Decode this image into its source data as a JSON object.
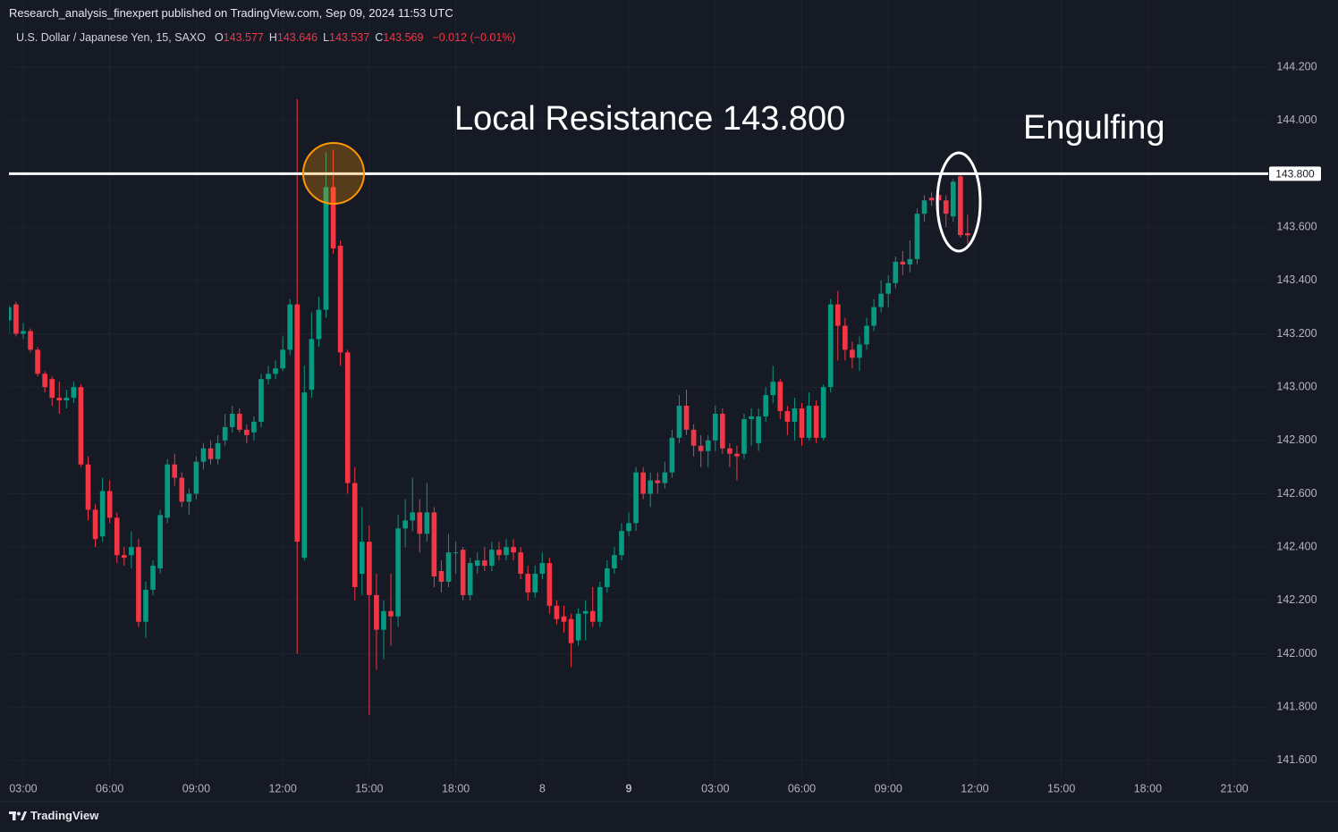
{
  "header": {
    "text": "Research_analysis_finexpert published on TradingView.com, Sep 09, 2024 11:53 UTC"
  },
  "footer": {
    "text": "TradingView"
  },
  "chart_data": {
    "type": "candlestick",
    "title": "U.S. Dollar / Japanese Yen, 15, SAXO",
    "ohlc_legend": [
      {
        "label": "O",
        "value": "143.577"
      },
      {
        "label": "H",
        "value": "143.646"
      },
      {
        "label": "L",
        "value": "143.537"
      },
      {
        "label": "C",
        "value": "143.569"
      }
    ],
    "change": "−0.012 (−0.01%)",
    "annotations": [
      {
        "text": "Local Resistance 143.800"
      },
      {
        "text": "Engulfing"
      }
    ],
    "hline": {
      "value": 143.8,
      "label": "143.800",
      "color": "#ffffff"
    },
    "up_color": "#089981",
    "down_color": "#f23645",
    "grid": true,
    "xlim": [
      -1.98,
      172.7
    ],
    "ylim": [
      141.536,
      144.351
    ],
    "xticks": [
      {
        "value": 0,
        "label": "03:00"
      },
      {
        "value": 12,
        "label": "06:00"
      },
      {
        "value": 24,
        "label": "09:00"
      },
      {
        "value": 36,
        "label": "12:00"
      },
      {
        "value": 48,
        "label": "15:00"
      },
      {
        "value": 60,
        "label": "18:00"
      },
      {
        "value": 72,
        "label": "8"
      },
      {
        "value": 84,
        "label": "9"
      },
      {
        "value": 96,
        "label": "03:00"
      },
      {
        "value": 108,
        "label": "06:00"
      },
      {
        "value": 120,
        "label": "09:00"
      },
      {
        "value": 132,
        "label": "12:00"
      },
      {
        "value": 144,
        "label": "15:00"
      },
      {
        "value": 156,
        "label": "18:00"
      },
      {
        "value": 168,
        "label": "21:00"
      }
    ],
    "yticks": [
      {
        "value": 141.6,
        "label": "141.600"
      },
      {
        "value": 141.8,
        "label": "141.800"
      },
      {
        "value": 142.0,
        "label": "142.000"
      },
      {
        "value": 142.2,
        "label": "142.200"
      },
      {
        "value": 142.4,
        "label": "142.400"
      },
      {
        "value": 142.6,
        "label": "142.600"
      },
      {
        "value": 142.8,
        "label": "142.800"
      },
      {
        "value": 143.0,
        "label": "143.000"
      },
      {
        "value": 143.2,
        "label": "143.200"
      },
      {
        "value": 143.4,
        "label": "143.400"
      },
      {
        "value": 143.6,
        "label": "143.600"
      },
      {
        "value": 143.8,
        "label": "143.800"
      },
      {
        "value": 144.0,
        "label": "144.000"
      },
      {
        "value": 144.2,
        "label": "144.200"
      }
    ],
    "x": [
      -2,
      -1,
      0,
      1,
      2,
      3,
      4,
      5,
      6,
      7,
      8,
      9,
      10,
      11,
      12,
      13,
      14,
      15,
      16,
      17,
      18,
      19,
      20,
      21,
      22,
      23,
      24,
      25,
      26,
      27,
      28,
      29,
      30,
      31,
      32,
      33,
      34,
      35,
      36,
      37,
      38,
      39,
      40,
      41,
      42,
      43,
      44,
      45,
      46,
      47,
      48,
      49,
      50,
      51,
      52,
      53,
      54,
      55,
      56,
      57,
      58,
      59,
      60,
      61,
      62,
      63,
      64,
      65,
      66,
      67,
      68,
      69,
      70,
      71,
      72,
      73,
      74,
      75,
      76,
      77,
      78,
      79,
      80,
      81,
      82,
      83,
      84,
      85,
      86,
      87,
      88,
      89,
      90,
      91,
      92,
      93,
      94,
      95,
      96,
      97,
      98,
      99,
      100,
      101,
      102,
      103,
      104,
      105,
      106,
      107,
      108,
      109,
      110,
      111,
      112,
      113,
      114,
      115,
      116,
      117,
      118,
      119,
      120,
      121,
      122,
      123,
      124,
      125,
      126,
      127,
      128,
      129,
      130,
      131
    ],
    "open": [
      143.25,
      143.31,
      143.2,
      143.21,
      143.14,
      143.05,
      143.03,
      142.96,
      142.95,
      142.96,
      143.0,
      142.71,
      142.54,
      142.44,
      142.61,
      142.51,
      142.37,
      142.37,
      142.4,
      142.12,
      142.24,
      142.32,
      142.51,
      142.71,
      142.66,
      142.57,
      142.6,
      142.72,
      142.77,
      142.73,
      142.8,
      142.85,
      142.9,
      142.84,
      142.83,
      142.87,
      143.03,
      143.05,
      143.07,
      143.14,
      143.31,
      142.36,
      142.99,
      143.18,
      143.29,
      143.75,
      143.53,
      143.13,
      142.64,
      142.3,
      142.42,
      142.22,
      142.09,
      142.16,
      142.14,
      142.47,
      142.5,
      142.53,
      142.45,
      142.53,
      142.31,
      142.27,
      142.38,
      142.39,
      142.22,
      142.33,
      142.35,
      142.33,
      142.39,
      142.37,
      142.4,
      142.38,
      142.3,
      142.23,
      142.3,
      142.34,
      142.18,
      142.14,
      142.13,
      142.05,
      142.15,
      142.16,
      142.12,
      142.25,
      142.32,
      142.37,
      142.46,
      142.49,
      142.68,
      142.6,
      142.65,
      142.64,
      142.68,
      142.81,
      142.93,
      142.84,
      142.78,
      142.76,
      142.8,
      142.9,
      142.77,
      142.75,
      142.75,
      142.88,
      142.79,
      142.89,
      142.97,
      143.02,
      142.91,
      142.87,
      142.92,
      142.81,
      142.93,
      142.81,
      143.0,
      143.31,
      143.23,
      143.14,
      143.11,
      143.16,
      143.23,
      143.3,
      143.35,
      143.39,
      143.47,
      143.46,
      143.48,
      143.65,
      143.71,
      143.72,
      143.7,
      143.64,
      143.79,
      143.577
    ],
    "high": [
      143.31,
      143.32,
      143.24,
      143.22,
      143.15,
      143.06,
      143.04,
      143.02,
      142.99,
      143.02,
      143.01,
      142.74,
      142.56,
      142.66,
      142.65,
      142.53,
      142.4,
      142.46,
      142.43,
      142.27,
      142.35,
      142.54,
      142.73,
      142.75,
      142.68,
      142.62,
      142.74,
      142.79,
      142.8,
      142.82,
      142.9,
      142.93,
      142.92,
      142.86,
      142.89,
      143.05,
      143.08,
      143.1,
      143.19,
      143.33,
      144.08,
      143.08,
      143.28,
      143.34,
      143.88,
      143.89,
      143.55,
      143.14,
      142.7,
      142.55,
      142.48,
      142.3,
      142.2,
      142.3,
      142.52,
      142.58,
      142.66,
      142.58,
      142.64,
      142.55,
      142.35,
      142.45,
      142.42,
      142.4,
      142.36,
      142.38,
      142.4,
      142.42,
      142.42,
      142.43,
      142.43,
      142.4,
      142.33,
      142.33,
      142.38,
      142.36,
      142.2,
      142.18,
      142.15,
      142.17,
      142.2,
      142.25,
      142.27,
      142.35,
      142.4,
      142.49,
      142.53,
      142.7,
      142.7,
      142.68,
      142.68,
      142.72,
      142.84,
      142.97,
      142.99,
      142.86,
      142.82,
      142.82,
      142.93,
      142.92,
      142.79,
      142.78,
      142.9,
      142.92,
      142.92,
      143.0,
      143.08,
      143.03,
      142.93,
      142.96,
      142.94,
      142.98,
      142.95,
      143.01,
      143.33,
      143.36,
      143.26,
      143.17,
      143.19,
      143.26,
      143.33,
      143.4,
      143.42,
      143.49,
      143.51,
      143.55,
      143.67,
      143.72,
      143.73,
      143.77,
      143.72,
      143.78,
      143.8,
      143.646
    ],
    "low": [
      143.2,
      143.19,
      143.18,
      143.13,
      143.04,
      142.98,
      142.93,
      142.9,
      142.92,
      142.94,
      142.7,
      142.5,
      142.4,
      142.42,
      142.49,
      142.34,
      142.33,
      142.32,
      142.1,
      142.06,
      142.22,
      142.3,
      142.49,
      142.63,
      142.55,
      142.52,
      142.58,
      142.69,
      142.71,
      142.71,
      142.78,
      142.83,
      142.83,
      142.79,
      142.8,
      142.85,
      143.01,
      143.03,
      143.06,
      143.12,
      142.0,
      142.35,
      142.96,
      143.15,
      143.26,
      143.5,
      143.08,
      142.6,
      142.2,
      142.22,
      141.77,
      141.94,
      141.98,
      142.03,
      142.1,
      142.4,
      142.46,
      142.38,
      142.42,
      142.25,
      142.23,
      142.25,
      142.3,
      142.2,
      142.2,
      142.3,
      142.31,
      142.31,
      142.35,
      142.35,
      142.35,
      142.28,
      142.2,
      142.21,
      142.28,
      142.15,
      142.11,
      142.08,
      141.95,
      142.03,
      142.05,
      142.1,
      142.1,
      142.23,
      142.3,
      142.35,
      142.44,
      142.46,
      142.58,
      142.55,
      142.6,
      142.62,
      142.66,
      142.79,
      142.82,
      142.74,
      142.7,
      142.7,
      142.76,
      142.75,
      142.7,
      142.65,
      142.73,
      142.78,
      142.76,
      142.87,
      142.94,
      142.88,
      142.82,
      142.8,
      142.78,
      142.8,
      142.79,
      142.8,
      142.98,
      143.1,
      143.1,
      143.07,
      143.06,
      143.14,
      143.21,
      143.28,
      143.3,
      143.37,
      143.42,
      143.43,
      143.46,
      143.62,
      143.68,
      143.66,
      143.6,
      143.62,
      143.56,
      143.537
    ],
    "close": [
      143.3,
      143.2,
      143.21,
      143.14,
      143.05,
      143.0,
      142.96,
      142.95,
      142.96,
      143.0,
      142.71,
      142.54,
      142.43,
      142.61,
      142.51,
      142.37,
      142.36,
      142.4,
      142.12,
      142.24,
      142.33,
      142.52,
      142.71,
      142.66,
      142.57,
      142.6,
      142.72,
      142.77,
      142.73,
      142.79,
      142.85,
      142.9,
      142.84,
      142.82,
      142.87,
      143.03,
      143.05,
      143.07,
      143.14,
      143.31,
      142.42,
      142.98,
      143.18,
      143.29,
      143.75,
      143.52,
      143.13,
      142.64,
      142.25,
      142.42,
      142.22,
      142.09,
      142.16,
      142.14,
      142.47,
      142.5,
      142.53,
      142.45,
      142.53,
      142.29,
      142.27,
      142.38,
      142.38,
      142.22,
      142.34,
      142.35,
      142.33,
      142.39,
      142.37,
      142.4,
      142.38,
      142.3,
      142.23,
      142.3,
      142.34,
      142.18,
      142.13,
      142.12,
      142.04,
      142.15,
      142.16,
      142.12,
      142.25,
      142.32,
      142.37,
      142.46,
      142.49,
      142.68,
      142.6,
      142.65,
      142.64,
      142.68,
      142.81,
      142.93,
      142.84,
      142.78,
      142.76,
      142.8,
      142.9,
      142.77,
      142.75,
      142.74,
      142.88,
      142.89,
      142.89,
      142.97,
      143.02,
      142.91,
      142.87,
      142.92,
      142.81,
      142.93,
      142.81,
      143.0,
      143.31,
      143.23,
      143.14,
      143.11,
      143.16,
      143.23,
      143.3,
      143.35,
      143.39,
      143.47,
      143.46,
      143.48,
      143.65,
      143.7,
      143.7,
      143.7,
      143.65,
      143.77,
      143.57,
      143.569
    ]
  }
}
